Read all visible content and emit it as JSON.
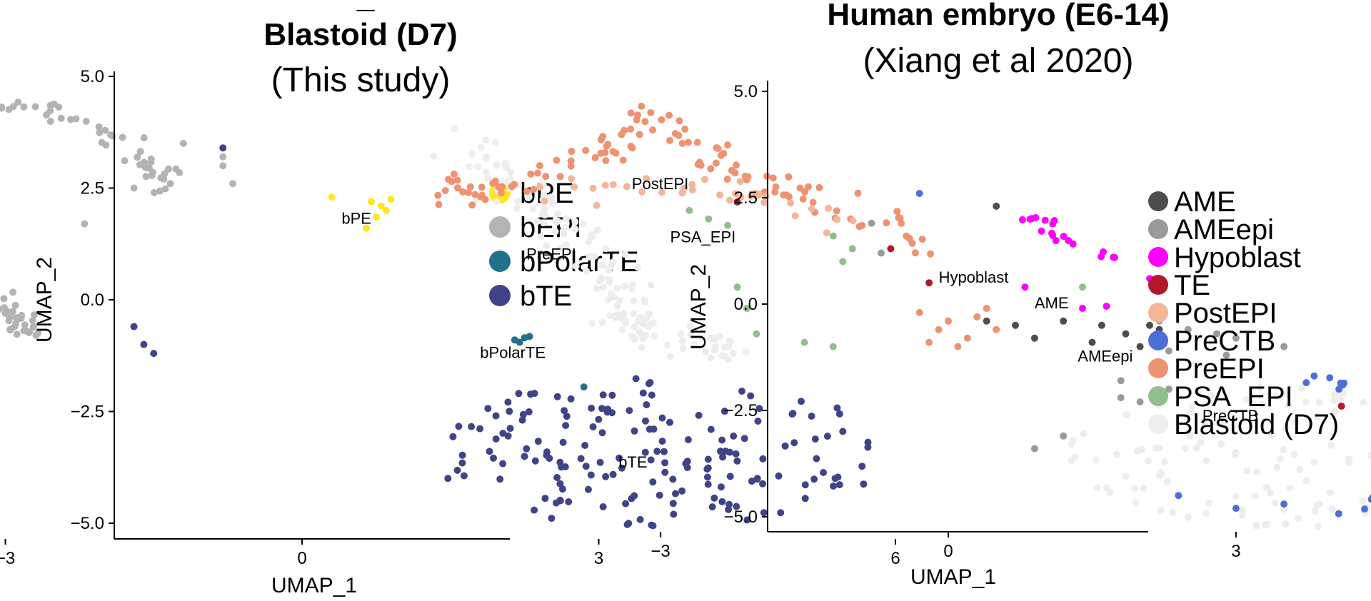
{
  "chart_data": [
    {
      "type": "scatter",
      "title_partial": "_",
      "title": "Blastoid (D7)",
      "subtitle": "(This study)",
      "xlabel": "UMAP_1",
      "ylabel": "UMAP_2",
      "xlim": [
        -5.1,
        6.2
      ],
      "ylim": [
        -5.4,
        5.2
      ],
      "xticks": [
        -3,
        0,
        3,
        6
      ],
      "yticks": [
        5.0,
        2.5,
        0.0,
        -2.5,
        -5.0
      ],
      "xtick_labels": [
        "−3",
        "0",
        "3",
        "6"
      ],
      "ytick_labels": [
        "5.0",
        "2.5",
        "0.0",
        "−2.5",
        "−5.0"
      ],
      "legend": [
        {
          "name": "bPE",
          "color": "#FDE725"
        },
        {
          "name": "bEPI",
          "color": "#B3B3B3"
        },
        {
          "name": "bPolarTE",
          "color": "#21708C"
        },
        {
          "name": "bTE",
          "color": "#3F4488"
        }
      ],
      "cluster_labels": [
        {
          "text": "bEPI",
          "x": -3.8,
          "y": 2.45
        },
        {
          "text": "bPE",
          "x": 0.4,
          "y": 1.7
        },
        {
          "text": "bPolarTE",
          "x": 1.8,
          "y": -1.3
        },
        {
          "text": "bTE",
          "x": 3.2,
          "y": -3.75
        }
      ],
      "clusters": [
        {
          "group": "bEPI",
          "shape": "band",
          "n": 190,
          "path": [
            [
              -5.0,
              4.0
            ],
            [
              -4.4,
              3.4
            ],
            [
              -4.2,
              2.5
            ],
            [
              -4.0,
              1.6
            ],
            [
              -3.6,
              0.8
            ],
            [
              -3.3,
              0.2
            ],
            [
              -3.0,
              -0.4
            ],
            [
              -2.7,
              -0.8
            ]
          ],
          "spread": 0.45
        },
        {
          "group": "bEPI",
          "shape": "band",
          "n": 55,
          "path": [
            [
              -3.4,
              4.4
            ],
            [
              -2.6,
              4.3
            ],
            [
              -2.0,
              3.7
            ],
            [
              -1.5,
              3.0
            ],
            [
              -1.3,
              2.5
            ]
          ],
          "spread": 0.35
        },
        {
          "group": "bEPI",
          "shape": "points",
          "pts": [
            [
              -1.2,
              3.5
            ],
            [
              -0.8,
              3.2
            ],
            [
              -0.7,
              2.6
            ],
            [
              -2.2,
              1.7
            ],
            [
              -0.8,
              3.0
            ],
            [
              -1.7,
              2.5
            ]
          ]
        },
        {
          "group": "bPE",
          "shape": "points",
          "pts": [
            [
              0.3,
              2.3
            ],
            [
              0.7,
              2.2
            ],
            [
              0.8,
              2.1
            ],
            [
              0.85,
              2.0
            ],
            [
              0.75,
              1.85
            ],
            [
              0.9,
              2.25
            ],
            [
              0.65,
              1.6
            ],
            [
              -3.2,
              -3.7
            ]
          ]
        },
        {
          "group": "bPolarTE",
          "shape": "points",
          "pts": [
            [
              2.15,
              -0.9
            ],
            [
              2.25,
              -0.85
            ],
            [
              2.2,
              -0.95
            ],
            [
              2.3,
              -0.82
            ],
            [
              2.85,
              -1.95
            ]
          ]
        },
        {
          "group": "bTE",
          "shape": "points",
          "pts": [
            [
              -0.8,
              3.4
            ],
            [
              -1.7,
              -0.6
            ],
            [
              -1.6,
              -1.0
            ],
            [
              -1.5,
              -1.2
            ]
          ]
        },
        {
          "group": "bTE",
          "shape": "blob",
          "n": 175,
          "cx": 3.6,
          "cy": -3.4,
          "rx": 2.3,
          "ry": 1.7
        }
      ]
    },
    {
      "type": "scatter",
      "title": "Human embryo (E6-14)",
      "subtitle": "(Xiang et al 2020)",
      "xlabel": "UMAP_1",
      "ylabel": "UMAP_2",
      "xlim": [
        -7.5,
        6.2
      ],
      "ylim": [
        -5.4,
        5.2
      ],
      "xticks": [
        -3,
        0,
        3,
        6
      ],
      "yticks": [
        5.0,
        2.5,
        0.0,
        -2.5,
        -5.0
      ],
      "xtick_labels": [
        "−3",
        "0",
        "3",
        "6"
      ],
      "ytick_labels": [
        "5.0",
        "2.5",
        "0.0",
        "−2.5",
        "−5.0"
      ],
      "legend": [
        {
          "name": "AME",
          "color": "#4D4D4D"
        },
        {
          "name": "AMEepi",
          "color": "#9A9A9A"
        },
        {
          "name": "Hypoblast",
          "color": "#FF00FF"
        },
        {
          "name": "TE",
          "color": "#B2182B"
        },
        {
          "name": "PostEPI",
          "color": "#F4B69A"
        },
        {
          "name": "PreCTB",
          "color": "#4F6FD8"
        },
        {
          "name": "PreEPI",
          "color": "#EE9272"
        },
        {
          "name": "PSA_EPI",
          "color": "#8FBF8A"
        },
        {
          "name": "Blastoid (D7)",
          "color": "#EDEDED"
        }
      ],
      "cluster_labels": [
        {
          "text": "PostEPI",
          "x": -3.3,
          "y": 2.7
        },
        {
          "text": "PreEPI",
          "x": -4.4,
          "y": 1.05
        },
        {
          "text": "PSA_EPI",
          "x": -2.9,
          "y": 1.45
        },
        {
          "text": "Hypoblast",
          "x": -0.1,
          "y": 0.5
        },
        {
          "text": "AME",
          "x": 0.9,
          "y": -0.1
        },
        {
          "text": "AMEepi",
          "x": 1.35,
          "y": -1.35
        },
        {
          "text": "PreCTB",
          "x": 2.65,
          "y": -2.75
        },
        {
          "text": "TE",
          "x": 4.55,
          "y": -3.75
        }
      ],
      "clusters": [
        {
          "group": "Blastoid (D7)",
          "shape": "band",
          "n": 150,
          "path": [
            [
              -5.2,
              4.0
            ],
            [
              -4.6,
              3.0
            ],
            [
              -4.0,
              1.8
            ],
            [
              -3.6,
              0.8
            ],
            [
              -3.4,
              -0.3
            ],
            [
              -3.0,
              -0.8
            ],
            [
              -2.3,
              -1.0
            ]
          ],
          "spread": 0.6
        },
        {
          "group": "Blastoid (D7)",
          "shape": "blob",
          "n": 140,
          "cx": 3.5,
          "cy": -3.6,
          "rx": 2.3,
          "ry": 1.7
        },
        {
          "group": "PreEPI",
          "shape": "band",
          "n": 120,
          "path": [
            [
              -5.3,
              2.5
            ],
            [
              -4.6,
              2.8
            ],
            [
              -3.6,
              3.6
            ],
            [
              -3.2,
              4.5
            ],
            [
              -2.5,
              3.4
            ],
            [
              -1.6,
              2.6
            ],
            [
              -0.6,
              1.9
            ],
            [
              -0.2,
              1.0
            ]
          ],
          "spread": 0.55
        },
        {
          "group": "PreEPI",
          "shape": "points",
          "pts": [
            [
              -0.3,
              -0.2
            ],
            [
              0.0,
              -0.4
            ],
            [
              0.3,
              -0.3
            ],
            [
              -0.1,
              -0.6
            ],
            [
              0.2,
              -0.8
            ],
            [
              0.5,
              -0.6
            ],
            [
              0.1,
              -1.0
            ],
            [
              -0.2,
              -0.9
            ],
            [
              0.4,
              -0.1
            ]
          ]
        },
        {
          "group": "PostEPI",
          "shape": "band",
          "n": 35,
          "path": [
            [
              -4.2,
              2.6
            ],
            [
              -3.0,
              2.8
            ],
            [
              -2.0,
              2.5
            ],
            [
              -1.0,
              1.8
            ]
          ],
          "spread": 0.45
        },
        {
          "group": "PSA_EPI",
          "shape": "points",
          "pts": [
            [
              -2.5,
              2.0
            ],
            [
              -2.3,
              1.85
            ],
            [
              -1.2,
              1.6
            ],
            [
              -1.0,
              1.3
            ],
            [
              -1.1,
              1.0
            ],
            [
              -2.2,
              0.4
            ],
            [
              -2.1,
              -0.1
            ],
            [
              -2.0,
              -0.7
            ],
            [
              -1.5,
              -0.9
            ],
            [
              -1.2,
              -1.0
            ],
            [
              -2.7,
              2.2
            ],
            [
              1.4,
              0.4
            ]
          ]
        },
        {
          "group": "Hypoblast",
          "shape": "band",
          "n": 18,
          "path": [
            [
              0.9,
              2.0
            ],
            [
              1.3,
              1.5
            ],
            [
              1.8,
              1.0
            ]
          ],
          "spread": 0.25
        },
        {
          "group": "Hypoblast",
          "shape": "points",
          "pts": [
            [
              0.8,
              0.4
            ],
            [
              1.4,
              -0.1
            ],
            [
              2.1,
              0.6
            ],
            [
              1.65,
              -0.05
            ]
          ]
        },
        {
          "group": "TE",
          "shape": "points",
          "pts": [
            [
              -2.2,
              2.4
            ],
            [
              -0.6,
              1.3
            ],
            [
              -0.2,
              0.5
            ],
            [
              4.1,
              -2.4
            ],
            [
              5.0,
              -3.0
            ],
            [
              5.0,
              -3.4
            ],
            [
              5.3,
              -4.1
            ],
            [
              5.2,
              -4.3
            ],
            [
              4.8,
              -4.5
            ]
          ]
        },
        {
          "group": "AME",
          "shape": "points",
          "pts": [
            [
              0.4,
              -0.4
            ],
            [
              0.7,
              -0.5
            ],
            [
              1.2,
              -0.4
            ],
            [
              1.6,
              -0.5
            ],
            [
              2.1,
              -0.5
            ],
            [
              2.2,
              -0.6
            ],
            [
              1.5,
              -0.9
            ],
            [
              2.0,
              -1.0
            ],
            [
              1.85,
              -0.7
            ],
            [
              0.9,
              -0.8
            ],
            [
              0.5,
              2.3
            ]
          ]
        },
        {
          "group": "AMEepi",
          "shape": "points",
          "pts": [
            [
              -0.7,
              1.2
            ],
            [
              -0.8,
              1.9
            ],
            [
              2.5,
              -0.6
            ],
            [
              2.8,
              -0.7
            ],
            [
              3.0,
              -0.8
            ],
            [
              2.3,
              -1.1
            ],
            [
              2.9,
              -1.2
            ],
            [
              1.8,
              -1.8
            ],
            [
              1.8,
              -2.2
            ],
            [
              2.0,
              -2.3
            ],
            [
              2.3,
              -2.0
            ],
            [
              1.2,
              -3.1
            ],
            [
              0.9,
              -3.4
            ],
            [
              2.2,
              -0.4
            ],
            [
              3.5,
              -1.0
            ]
          ]
        },
        {
          "group": "PreCTB",
          "shape": "arc",
          "n": 45,
          "cx": 3.9,
          "cy": -3.3,
          "rx": 2.0,
          "ry": 1.6,
          "t0": -1.6,
          "t1": 1.9
        },
        {
          "group": "PreCTB",
          "shape": "points",
          "pts": [
            [
              -0.3,
              2.6
            ],
            [
              2.4,
              -4.5
            ],
            [
              3.0,
              -4.8
            ],
            [
              3.5,
              -4.7
            ]
          ]
        }
      ]
    }
  ]
}
